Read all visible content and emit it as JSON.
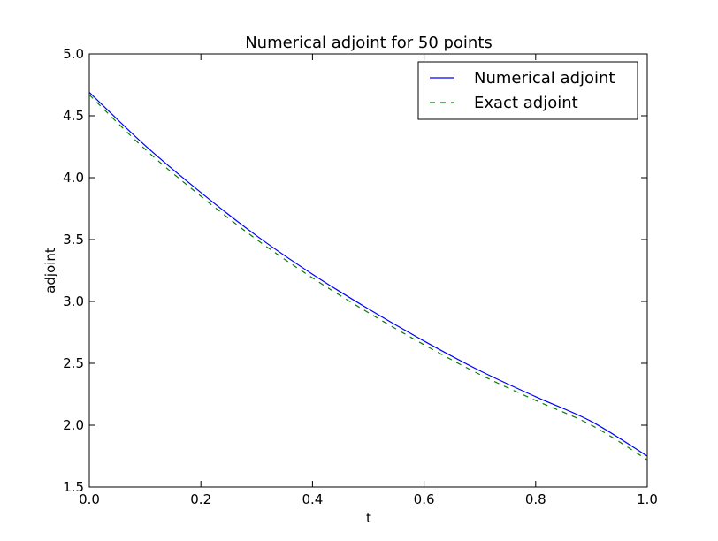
{
  "chart_data": {
    "type": "line",
    "title": "Numerical adjoint for 50 points",
    "xlabel": "t",
    "ylabel": "adjoint",
    "xlim": [
      0.0,
      1.0
    ],
    "ylim": [
      1.5,
      5.0
    ],
    "xticks": [
      0.0,
      0.2,
      0.4,
      0.6,
      0.8,
      1.0
    ],
    "xtick_labels": [
      "0.0",
      "0.2",
      "0.4",
      "0.6",
      "0.8",
      "1.0"
    ],
    "yticks": [
      1.5,
      2.0,
      2.5,
      3.0,
      3.5,
      4.0,
      4.5,
      5.0
    ],
    "ytick_labels": [
      "1.5",
      "2.0",
      "2.5",
      "3.0",
      "3.5",
      "4.0",
      "4.5",
      "5.0"
    ],
    "grid": false,
    "legend_position": "top-right",
    "series": [
      {
        "name": "Numerical adjoint",
        "color": "#0000ff",
        "style": "solid",
        "x": [
          0.0,
          0.1,
          0.2,
          0.3,
          0.4,
          0.5,
          0.6,
          0.7,
          0.8,
          0.9,
          1.0
        ],
        "values": [
          4.69,
          4.26,
          3.88,
          3.53,
          3.22,
          2.94,
          2.68,
          2.44,
          2.23,
          2.03,
          1.75
        ]
      },
      {
        "name": "Exact adjoint",
        "color": "#008000",
        "style": "dashed",
        "x": [
          0.0,
          0.1,
          0.2,
          0.3,
          0.4,
          0.5,
          0.6,
          0.7,
          0.8,
          0.9,
          1.0
        ],
        "values": [
          4.67,
          4.23,
          3.85,
          3.5,
          3.19,
          2.91,
          2.65,
          2.41,
          2.2,
          2.0,
          1.72
        ]
      }
    ]
  }
}
